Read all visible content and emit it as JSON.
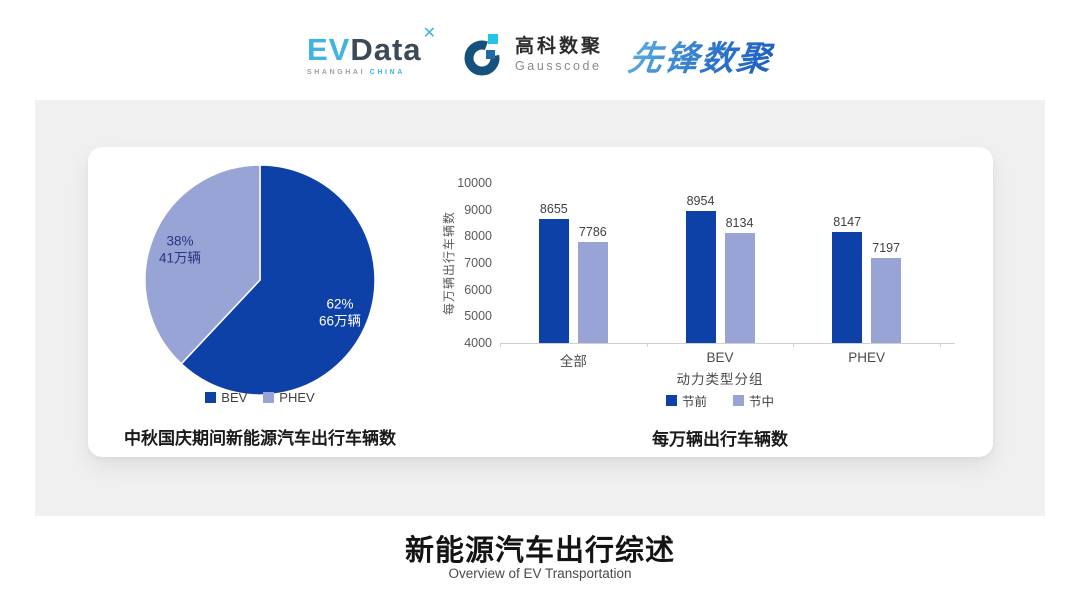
{
  "header": {
    "evdata": {
      "ev": "EV",
      "data": "Data",
      "mark": "✕",
      "sub_left": "SHANGHAI",
      "sub_right": "CHINA"
    },
    "gausscode": {
      "cn": "高科数聚",
      "en": "Gausscode"
    },
    "pioneer": {
      "text": "先锋数聚"
    }
  },
  "colors": {
    "series_dark": "#0d41a8",
    "series_light": "#98a4d6",
    "panel_bg": "#f0f0f1",
    "card_bg": "#ffffff",
    "axis_line": "#cfcfcf",
    "tick_text": "#595959",
    "value_text": "#404040",
    "logo_cyan": "#3fb3e3",
    "logo_slate": "#3c4a57"
  },
  "chart_data": [
    {
      "type": "pie",
      "title": "中秋国庆期间新能源汽车出行车辆数",
      "start_angle": "top",
      "direction": "clockwise",
      "legend_position": "bottom",
      "slices": [
        {
          "label": "BEV",
          "percent": 62,
          "value_label": "66万辆",
          "color": "#0d41a8",
          "text_color": "#ffffff"
        },
        {
          "label": "PHEV",
          "percent": 38,
          "value_label": "41万辆",
          "color": "#98a4d6",
          "text_color": "#26367f"
        }
      ]
    },
    {
      "type": "bar",
      "title": "每万辆出行车辆数",
      "categories": [
        "全部",
        "BEV",
        "PHEV"
      ],
      "series": [
        {
          "name": "节前",
          "values": [
            8655,
            8954,
            8147
          ],
          "color": "#0d41a8"
        },
        {
          "name": "节中",
          "values": [
            7786,
            8134,
            7197
          ],
          "color": "#98a4d6"
        }
      ],
      "xlabel": "动力类型分组",
      "ylabel": "每万辆出行车辆数",
      "ylim": [
        4000,
        10000
      ],
      "ytick_step": 1000,
      "grid": false,
      "legend_position": "bottom"
    }
  ],
  "footer": {
    "title": "新能源汽车出行综述",
    "subtitle": "Overview of EV Transportation"
  }
}
